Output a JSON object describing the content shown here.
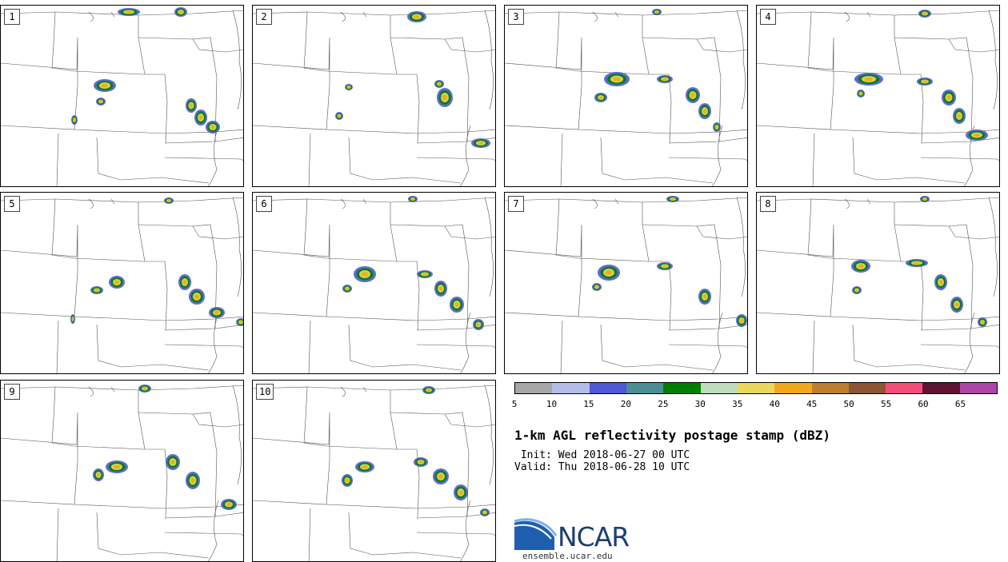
{
  "panels": [
    {
      "label": "1"
    },
    {
      "label": "2"
    },
    {
      "label": "3"
    },
    {
      "label": "4"
    },
    {
      "label": "5"
    },
    {
      "label": "6"
    },
    {
      "label": "7"
    },
    {
      "label": "8"
    },
    {
      "label": "9"
    },
    {
      "label": "10"
    }
  ],
  "colorbar": {
    "colors": [
      "#a6a6a6",
      "#b3bde8",
      "#4f58d6",
      "#4c8e94",
      "#017f01",
      "#bfdcbf",
      "#e9d85e",
      "#efa91b",
      "#bc7e2f",
      "#8d5533",
      "#f24e7a",
      "#5e1431",
      "#ad46a6"
    ],
    "ticks": [
      "5",
      "10",
      "15",
      "20",
      "25",
      "30",
      "35",
      "40",
      "45",
      "50",
      "55",
      "60",
      "65"
    ]
  },
  "title": "1-km AGL reflectivity postage stamp (dBZ)",
  "init": " Init: Wed 2018-06-27 00 UTC",
  "valid": "Valid: Thu 2018-06-28 10 UTC",
  "logo_text": "NCAR",
  "site": "ensemble.ucar.edu"
}
